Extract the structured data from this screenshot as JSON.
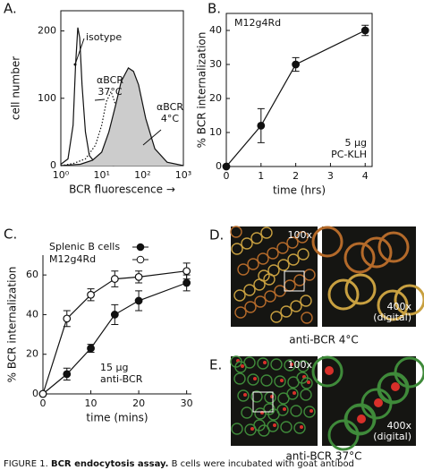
{
  "chart_data": [
    {
      "type": "line",
      "panel": "A.",
      "xlog": true,
      "xlabel": "BCR fluorescence →",
      "ylabel": "cell number",
      "xlim": [
        1,
        1000
      ],
      "ylim": [
        0,
        230
      ],
      "xticks": [
        {
          "value": 1,
          "label": "10⁰"
        },
        {
          "value": 10,
          "label": "10¹"
        },
        {
          "value": 100,
          "label": "10²"
        },
        {
          "value": 1000,
          "label": "10³"
        }
      ],
      "yticks": [
        0,
        100,
        200
      ],
      "series": [
        {
          "style": "solid",
          "color": "#111111",
          "x": [
            1,
            1.5,
            2,
            2.3,
            2.6,
            2.9,
            3.3,
            4,
            5,
            7,
            10,
            20
          ],
          "y": [
            2,
            10,
            60,
            150,
            205,
            190,
            120,
            50,
            15,
            4,
            1,
            0
          ],
          "label_lines": [
            "isotype"
          ]
        },
        {
          "style": "dotted",
          "color": "#111111",
          "x": [
            1,
            2,
            4,
            7,
            10,
            13,
            17,
            22,
            30,
            50,
            100,
            300
          ],
          "y": [
            0,
            3,
            10,
            30,
            60,
            95,
            110,
            90,
            50,
            15,
            3,
            0
          ],
          "label_lines": [
            "αBCR",
            "37°C"
          ]
        },
        {
          "style": "filled",
          "color": "#cccccc",
          "x": [
            1,
            3,
            6,
            10,
            15,
            22,
            30,
            45,
            60,
            80,
            120,
            200,
            400,
            1000
          ],
          "y": [
            0,
            2,
            8,
            20,
            50,
            90,
            125,
            145,
            140,
            120,
            70,
            25,
            5,
            0
          ],
          "label_lines": [
            "αBCR",
            "4°C"
          ]
        }
      ]
    },
    {
      "type": "line",
      "panel": "B.",
      "xlabel": "time (hrs)",
      "ylabel": "% BCR internalization",
      "xlim": [
        0,
        4.2
      ],
      "ylim": [
        0,
        45
      ],
      "xticks": [
        0,
        1,
        2,
        3,
        4
      ],
      "yticks": [
        0,
        10,
        20,
        30,
        40
      ],
      "x": [
        0,
        1,
        2,
        4
      ],
      "series": [
        {
          "marker": "filled",
          "color": "#111111",
          "values": [
            0,
            12,
            30,
            40
          ],
          "errors": [
            0,
            5,
            2,
            1.5
          ]
        }
      ],
      "annotations": [
        {
          "lines": [
            "M12g4Rd"
          ]
        },
        {
          "lines": [
            "5 µg",
            "PC-KLH"
          ]
        }
      ]
    },
    {
      "type": "line",
      "panel": "C.",
      "xlabel": "time (mins)",
      "ylabel": "% BCR internalization",
      "xlim": [
        0,
        31
      ],
      "ylim": [
        0,
        70
      ],
      "xticks": [
        0,
        10,
        20,
        30
      ],
      "yticks": [
        0,
        20,
        40,
        60
      ],
      "x": [
        0,
        5,
        10,
        15,
        20,
        30
      ],
      "series": [
        {
          "name": "Splenic B cells",
          "marker": "filled",
          "color": "#111111",
          "values": [
            0,
            10,
            23,
            40,
            47,
            56
          ],
          "errors": [
            0,
            3,
            2,
            5,
            5,
            4
          ]
        },
        {
          "name": "M12g4Rd",
          "marker": "open",
          "color": "#111111",
          "values": [
            0,
            38,
            50,
            58,
            59,
            62
          ],
          "errors": [
            0,
            4,
            3,
            4,
            3,
            4
          ]
        }
      ],
      "annotations": [
        {
          "lines": [
            "15 µg",
            "anti-BCR"
          ]
        }
      ]
    }
  ],
  "panels": [
    {
      "letter": "D.",
      "zoom_low": "100x",
      "zoom_high": [
        "400x",
        "(digital)"
      ],
      "label": "anti-BCR 4°C"
    },
    {
      "letter": "E.",
      "zoom_low": "100x",
      "zoom_high": [
        "400x",
        "(digital)"
      ],
      "label": "anti-BCR 37°C"
    }
  ],
  "caption": {
    "prefix": "FIGURE 1.",
    "title": "BCR endocytosis assay.",
    "text": "B cells were incubated with goat antibod"
  }
}
